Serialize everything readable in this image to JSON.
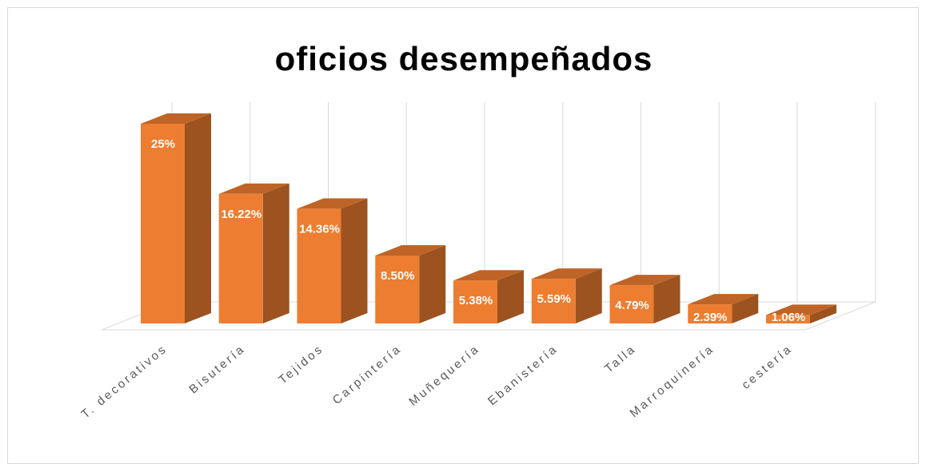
{
  "chart_data": {
    "type": "bar3d",
    "title": "oficios desempeñados",
    "categories": [
      "T. decorativos",
      "Bisutería",
      "Tejidos",
      "Carpintería",
      "Muñequería",
      "Ebanistería",
      "Talla",
      "Marroquinería",
      "cestería"
    ],
    "values": [
      25,
      16.22,
      14.36,
      8.5,
      5.38,
      5.59,
      4.79,
      2.39,
      1.06
    ],
    "value_labels": [
      "25%",
      "16.22%",
      "14.36%",
      "8.50%",
      "5.38%",
      "5.59%",
      "4.79%",
      "2.39%",
      "1.06%"
    ],
    "color": "#ed7d31"
  }
}
